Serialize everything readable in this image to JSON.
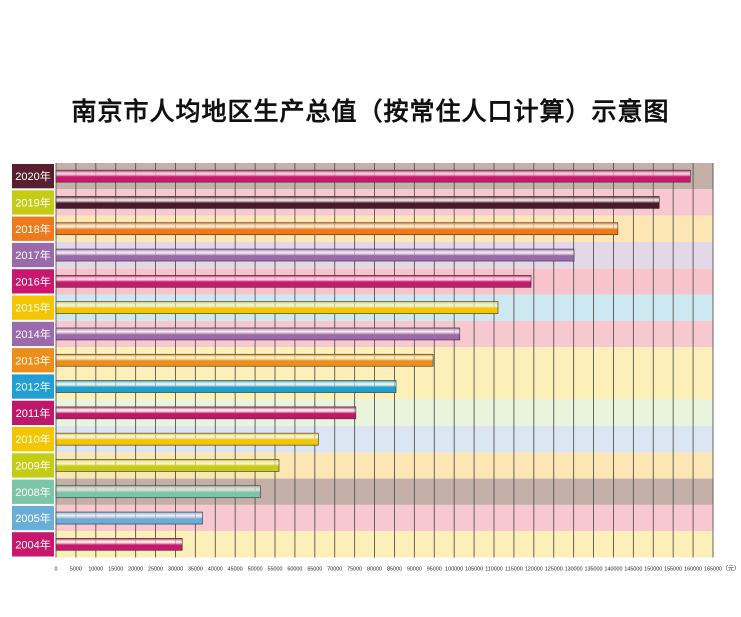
{
  "title": "南京市人均地区生产总值（按常住人口计算）示意图",
  "chart_data": {
    "type": "bar",
    "orientation": "horizontal",
    "title": "南京市人均地区生产总值（按常住人口计算）示意图",
    "xlabel": "",
    "ylabel": "",
    "unit": "（元）",
    "xlim": [
      0,
      165000
    ],
    "xticks": [
      0,
      5000,
      10000,
      15000,
      20000,
      25000,
      30000,
      35000,
      40000,
      45000,
      50000,
      55000,
      60000,
      65000,
      70000,
      75000,
      80000,
      85000,
      90000,
      95000,
      100000,
      105000,
      110000,
      115000,
      120000,
      125000,
      130000,
      135000,
      140000,
      145000,
      150000,
      155000,
      160000,
      165000
    ],
    "grid": true,
    "categories": [
      "2020年",
      "2019年",
      "2018年",
      "2017年",
      "2016年",
      "2015年",
      "2014年",
      "2013年",
      "2012年",
      "2011年",
      "2010年",
      "2009年",
      "2008年",
      "2005年",
      "2004年"
    ],
    "values": [
      159300,
      151500,
      141100,
      130100,
      119300,
      111000,
      101400,
      94700,
      85400,
      75300,
      65900,
      56000,
      51300,
      36800,
      31700
    ],
    "bar_colors": [
      "#c8186e",
      "#4a1a2a",
      "#ee7a1c",
      "#9a6aaa",
      "#c8186e",
      "#f3c600",
      "#9a6aaa",
      "#ee8e1a",
      "#1f9fd2",
      "#c01868",
      "#f3c600",
      "#c6cc16",
      "#7cc5a8",
      "#6aaed8",
      "#c8186e"
    ],
    "label_colors": [
      "#5a1f2f",
      "#c6cc16",
      "#ee7a1c",
      "#9a6aaa",
      "#c8186e",
      "#f3c600",
      "#9a6aaa",
      "#ee8e1a",
      "#1f9fd2",
      "#c01868",
      "#f3c600",
      "#c6cc16",
      "#7cc5a8",
      "#6aaed8",
      "#c8186e"
    ],
    "row_bg_colors": [
      "#c4b0a8",
      "#f8c8d0",
      "#fce6b4",
      "#e2d8e8",
      "#f8c4cc",
      "#cce8f0",
      "#f8c8d0",
      "#fcf0b8",
      "#fcf0b8",
      "#e8f4dc",
      "#dce6f2",
      "#fce6b4",
      "#c4b0a8",
      "#f8c8d0",
      "#fcf0b8"
    ]
  }
}
